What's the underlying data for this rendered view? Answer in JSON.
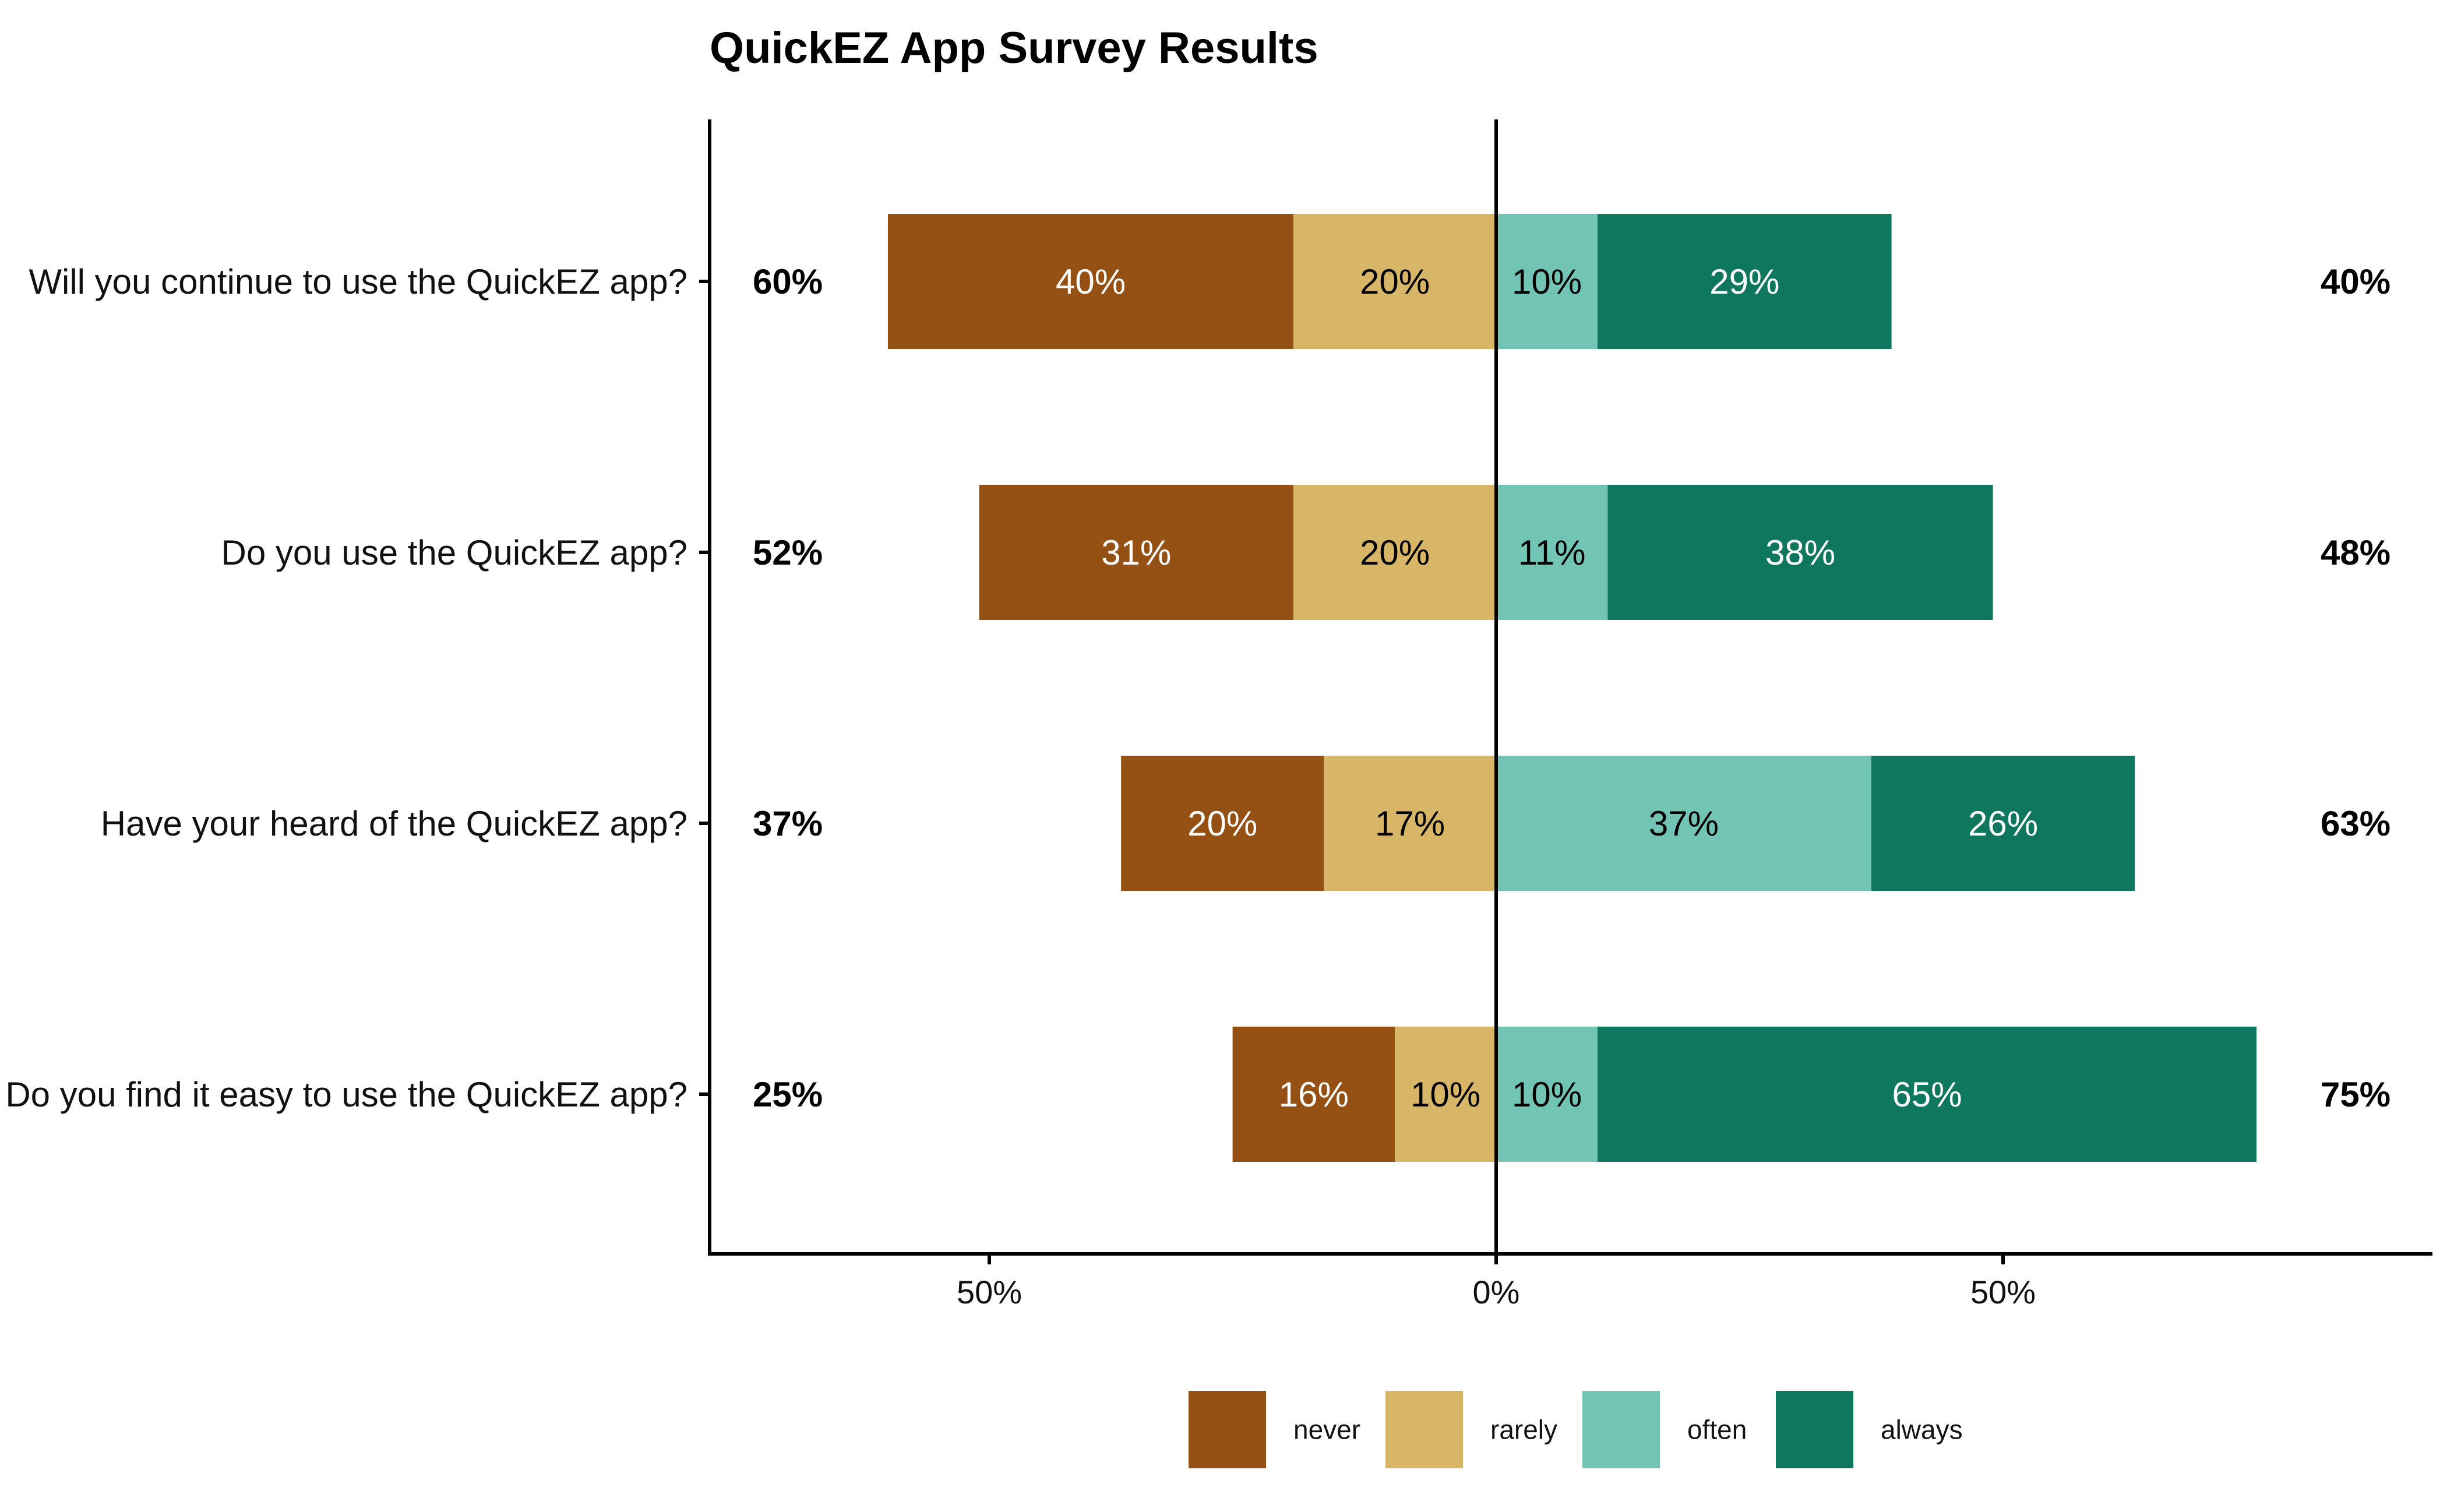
{
  "chart_data": {
    "type": "bar",
    "orientation": "horizontal",
    "stacking": "diverging",
    "title": "QuickEZ App Survey Results",
    "xlabel": "",
    "ylabel": "",
    "xlim": [
      -78,
      93
    ],
    "x_ticks": [
      {
        "value": -50,
        "label": "50%"
      },
      {
        "value": 0,
        "label": "0%"
      },
      {
        "value": 50,
        "label": "50%"
      }
    ],
    "grid": false,
    "legend_position": "bottom",
    "categories": [
      "Will you continue to use the QuickEZ app?",
      "Do you use the QuickEZ app?",
      "Have your heard of the QuickEZ app?",
      "Do you find it easy to use the QuickEZ app?"
    ],
    "series": [
      {
        "name": "never",
        "side": "negative",
        "color": "#955014",
        "label_color": "#ffffff",
        "values": [
          40,
          31,
          20,
          16
        ],
        "labels": [
          "40%",
          "31%",
          "20%",
          "16%"
        ]
      },
      {
        "name": "rarely",
        "side": "negative",
        "color": "#d8b667",
        "label_color": "#000000",
        "values": [
          20,
          20,
          17,
          10
        ],
        "labels": [
          "20%",
          "20%",
          "17%",
          "10%"
        ]
      },
      {
        "name": "often",
        "side": "positive",
        "color": "#72c4b4",
        "label_color": "#000000",
        "values": [
          10,
          11,
          37,
          10
        ],
        "labels": [
          "10%",
          "11%",
          "37%",
          "10%"
        ]
      },
      {
        "name": "always",
        "side": "positive",
        "color": "#10775f",
        "label_color": "#ffffff",
        "values": [
          29,
          38,
          26,
          65
        ],
        "labels": [
          "29%",
          "38%",
          "26%",
          "65%"
        ]
      }
    ],
    "totals_left": [
      "60%",
      "52%",
      "37%",
      "25%"
    ],
    "totals_right": [
      "40%",
      "48%",
      "63%",
      "75%"
    ]
  }
}
